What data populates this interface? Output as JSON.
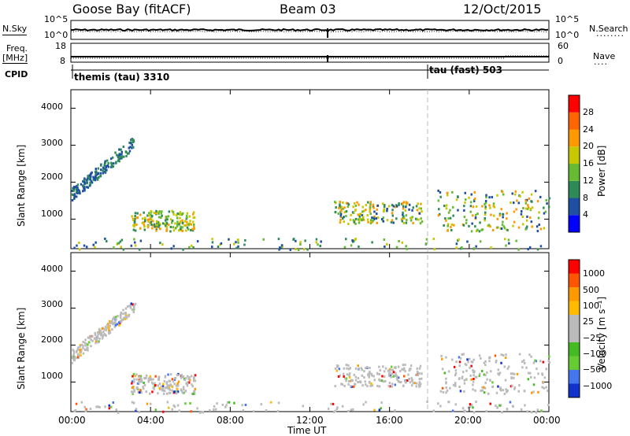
{
  "header": {
    "station": "Goose Bay (fitACF)",
    "beam": "Beam 03",
    "date": "12/Oct/2015"
  },
  "left_labels": {
    "nsky": "N.Sky",
    "freq": "Freq.",
    "freq_unit": "[MHz]",
    "cpid": "CPID"
  },
  "right_labels": {
    "nsearch": "N.Search",
    "nave": "Nave"
  },
  "cpid_modes": [
    "themis (tau) 3310",
    "tau (fast) 503"
  ],
  "colors": {
    "power": [
      "#0000ff",
      "#1f4fa0",
      "#2e8b57",
      "#66bb33",
      "#c8c800",
      "#ff9900",
      "#ff6600",
      "#ff0000"
    ],
    "velocity": [
      "#ff0000",
      "#ff5500",
      "#ff9900",
      "#ffbb00",
      "#bbbbbb",
      "#bbbbbb",
      "#44bb22",
      "#66cc33",
      "#4477ee",
      "#1133cc"
    ]
  },
  "chart_data": [
    {
      "type": "line",
      "panel": "noise",
      "left_axis": {
        "label": "N.Sky",
        "ticks": [
          "10^5",
          "10^0"
        ]
      },
      "right_axis": {
        "label": "N.Search",
        "ticks": [
          "10^5",
          "10^0"
        ]
      }
    },
    {
      "type": "line",
      "panel": "frequency",
      "left_axis": {
        "label": "Freq. [MHz]",
        "ticks": [
          "18",
          "8"
        ]
      },
      "right_axis": {
        "label": "Nave",
        "ticks": [
          "60",
          "0"
        ]
      }
    },
    {
      "type": "heatmap",
      "panel": "power",
      "ylabel": "Slant Range [km]",
      "yticks": [
        "1000",
        "2000",
        "3000",
        "4000"
      ],
      "ylim": [
        200,
        4500
      ],
      "colorbar": {
        "label": "Power [dB]",
        "ticks": [
          "4",
          "8",
          "12",
          "16",
          "20",
          "24",
          "28"
        ]
      },
      "scatter_regions_hours_km": [
        {
          "t": [
            0.0,
            3.2
          ],
          "r": [
            1600,
            3200
          ],
          "level": [
            1,
            3
          ]
        },
        {
          "t": [
            3.0,
            6.2
          ],
          "r": [
            700,
            1250
          ],
          "level": [
            2,
            6
          ]
        },
        {
          "t": [
            13.2,
            17.6
          ],
          "r": [
            900,
            1500
          ],
          "level": [
            1,
            6
          ]
        },
        {
          "t": [
            18.4,
            24.0
          ],
          "r": [
            700,
            1800
          ],
          "level": [
            1,
            6
          ]
        },
        {
          "t": [
            0.0,
            24.0
          ],
          "r": [
            200,
            500
          ],
          "level": [
            1,
            5
          ]
        }
      ]
    },
    {
      "type": "heatmap",
      "panel": "velocity",
      "ylabel": "Slant Range [km]",
      "yticks": [
        "1000",
        "2000",
        "3000",
        "4000"
      ],
      "ylim": [
        200,
        4500
      ],
      "colorbar": {
        "label": "Velocity [m s⁻¹]",
        "ticks": [
          "1000",
          "500",
          "100",
          "25",
          "−25",
          "−100",
          "−500",
          "−1000"
        ]
      }
    }
  ],
  "xaxis": {
    "ticks": [
      "00:00",
      "04:00",
      "08:00",
      "12:00",
      "16:00",
      "20:00",
      "00:00"
    ],
    "label": "Time UT"
  }
}
